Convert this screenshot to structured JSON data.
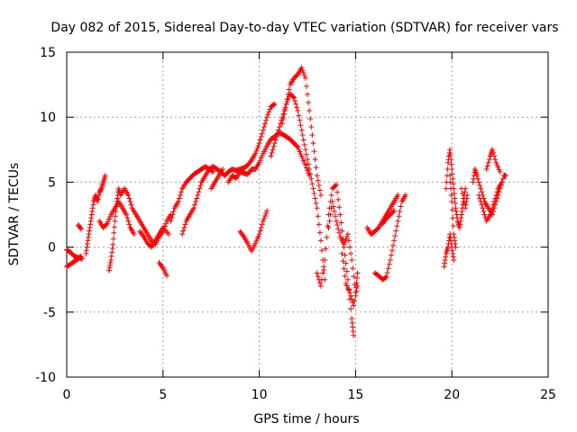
{
  "chart_data": {
    "type": "scatter",
    "title": "Day 082 of 2015, Sidereal Day-to-day VTEC variation (SDTVAR) for receiver vars",
    "xlabel": "GPS time / hours",
    "ylabel": "SDTVAR / TECUs",
    "xlim": [
      0,
      25
    ],
    "ylim": [
      -10,
      15
    ],
    "xticks": [
      0,
      5,
      10,
      15,
      20,
      25
    ],
    "yticks": [
      -10,
      -5,
      0,
      5,
      10,
      15
    ],
    "xtick_labels": [
      "0",
      "5",
      "10",
      "15",
      "20",
      "25"
    ],
    "ytick_labels": [
      "-10",
      "-5",
      "0",
      "5",
      "10",
      "15"
    ],
    "grid": true,
    "marker": "+",
    "series_color": "#ff0000",
    "series": [
      {
        "name": "SDTVAR",
        "segments": [
          [
            [
              0.0,
              -1.5
            ],
            [
              0.2,
              -1.3
            ],
            [
              0.4,
              -1.1
            ],
            [
              0.6,
              -0.9
            ],
            [
              0.75,
              -0.7
            ]
          ],
          [
            [
              0.0,
              -0.2
            ],
            [
              0.2,
              -0.4
            ],
            [
              0.4,
              -0.7
            ],
            [
              0.6,
              -0.8
            ],
            [
              0.8,
              -0.9
            ]
          ],
          [
            [
              0.6,
              1.7
            ],
            [
              0.75,
              1.4
            ]
          ],
          [
            [
              1.0,
              -0.5
            ],
            [
              1.1,
              0.5
            ],
            [
              1.2,
              1.5
            ],
            [
              1.3,
              2.5
            ],
            [
              1.4,
              3.5
            ],
            [
              1.5,
              4.0
            ],
            [
              1.6,
              3.5
            ],
            [
              1.7,
              4.2
            ],
            [
              1.8,
              4.5
            ],
            [
              1.9,
              5.0
            ],
            [
              2.0,
              5.5
            ]
          ],
          [
            [
              1.7,
              2.0
            ],
            [
              1.9,
              1.5
            ],
            [
              2.1,
              1.8
            ],
            [
              2.3,
              2.5
            ],
            [
              2.5,
              3.0
            ],
            [
              2.7,
              3.5
            ],
            [
              2.9,
              3.0
            ],
            [
              3.1,
              2.5
            ],
            [
              3.3,
              1.5
            ],
            [
              3.5,
              1.0
            ]
          ],
          [
            [
              2.2,
              -1.8
            ],
            [
              2.3,
              -1.0
            ],
            [
              2.4,
              0.2
            ],
            [
              2.5,
              2.0
            ],
            [
              2.6,
              3.5
            ],
            [
              2.7,
              4.5
            ],
            [
              2.8,
              4.0
            ],
            [
              3.0,
              4.5
            ],
            [
              3.2,
              4.0
            ],
            [
              3.4,
              3.0
            ],
            [
              3.6,
              2.5
            ],
            [
              3.8,
              2.0
            ],
            [
              4.0,
              1.5
            ],
            [
              4.2,
              1.0
            ],
            [
              4.4,
              0.5
            ],
            [
              4.6,
              0.2
            ],
            [
              4.8,
              0.8
            ],
            [
              5.0,
              1.2
            ],
            [
              5.2,
              2.0
            ],
            [
              5.4,
              2.5
            ]
          ],
          [
            [
              3.8,
              1.2
            ],
            [
              4.0,
              0.8
            ],
            [
              4.2,
              0.3
            ],
            [
              4.4,
              0.0
            ],
            [
              4.6,
              0.5
            ],
            [
              4.8,
              1.0
            ],
            [
              5.0,
              1.5
            ],
            [
              5.3,
              1.0
            ]
          ],
          [
            [
              4.8,
              -1.2
            ],
            [
              5.0,
              -1.6
            ],
            [
              5.2,
              -2.2
            ]
          ],
          [
            [
              5.4,
              2.0
            ],
            [
              5.6,
              3.0
            ],
            [
              5.8,
              3.5
            ],
            [
              6.0,
              4.5
            ],
            [
              6.2,
              5.0
            ],
            [
              6.4,
              5.3
            ],
            [
              6.6,
              5.6
            ],
            [
              6.8,
              5.8
            ],
            [
              7.0,
              6.0
            ],
            [
              7.2,
              6.2
            ],
            [
              7.4,
              6.0
            ],
            [
              7.6,
              6.2
            ],
            [
              7.8,
              6.0
            ],
            [
              8.0,
              5.8
            ],
            [
              8.2,
              5.5
            ]
          ],
          [
            [
              6.0,
              1.0
            ],
            [
              6.2,
              2.0
            ],
            [
              6.4,
              2.5
            ],
            [
              6.6,
              3.0
            ],
            [
              6.8,
              4.0
            ],
            [
              7.0,
              5.0
            ],
            [
              7.2,
              5.5
            ],
            [
              7.4,
              6.0
            ],
            [
              7.6,
              5.8
            ]
          ],
          [
            [
              7.5,
              4.5
            ],
            [
              7.7,
              5.0
            ],
            [
              7.9,
              5.5
            ],
            [
              8.1,
              6.0
            ]
          ],
          [
            [
              8.2,
              5.5
            ],
            [
              8.4,
              5.8
            ],
            [
              8.6,
              6.0
            ],
            [
              8.8,
              5.9
            ],
            [
              9.0,
              6.0
            ],
            [
              9.2,
              6.1
            ],
            [
              9.4,
              6.3
            ],
            [
              9.6,
              6.7
            ],
            [
              9.8,
              7.2
            ],
            [
              10.0,
              8.0
            ],
            [
              10.2,
              9.0
            ],
            [
              10.4,
              10.0
            ],
            [
              10.6,
              10.8
            ],
            [
              10.8,
              11.0
            ]
          ],
          [
            [
              8.4,
              5.0
            ],
            [
              8.6,
              5.5
            ],
            [
              8.8,
              5.3
            ],
            [
              9.0,
              5.8
            ],
            [
              9.2,
              5.7
            ],
            [
              9.4,
              5.6
            ],
            [
              9.6,
              6.0
            ],
            [
              9.8,
              6.0
            ],
            [
              10.0,
              6.5
            ],
            [
              10.2,
              7.2
            ],
            [
              10.4,
              7.8
            ],
            [
              10.6,
              8.3
            ],
            [
              10.8,
              8.5
            ],
            [
              11.0,
              8.8
            ],
            [
              11.2,
              8.7
            ],
            [
              11.4,
              8.5
            ],
            [
              11.6,
              8.3
            ],
            [
              11.8,
              8.0
            ],
            [
              12.0,
              7.7
            ],
            [
              12.2,
              7.0
            ],
            [
              12.4,
              6.3
            ],
            [
              12.6,
              5.5
            ]
          ],
          [
            [
              9.0,
              1.2
            ],
            [
              9.2,
              0.8
            ],
            [
              9.4,
              0.3
            ],
            [
              9.6,
              -0.3
            ],
            [
              9.8,
              0.3
            ],
            [
              10.0,
              1.0
            ],
            [
              10.2,
              2.0
            ],
            [
              10.4,
              2.8
            ]
          ],
          [
            [
              10.6,
              7.0
            ],
            [
              10.8,
              8.0
            ],
            [
              11.0,
              9.0
            ],
            [
              11.2,
              10.0
            ],
            [
              11.4,
              11.0
            ],
            [
              11.6,
              11.8
            ],
            [
              11.8,
              11.5
            ],
            [
              12.0,
              10.5
            ],
            [
              12.2,
              9.0
            ],
            [
              12.4,
              7.5
            ],
            [
              12.6,
              6.0
            ],
            [
              12.8,
              4.5
            ],
            [
              13.0,
              3.0
            ],
            [
              13.2,
              0.5
            ],
            [
              13.4,
              -2.5
            ]
          ],
          [
            [
              11.2,
              9.5
            ],
            [
              11.4,
              11.0
            ],
            [
              11.6,
              12.5
            ],
            [
              11.8,
              13.0
            ],
            [
              12.0,
              13.3
            ],
            [
              12.2,
              13.8
            ],
            [
              12.4,
              13.0
            ],
            [
              12.6,
              10.5
            ],
            [
              12.8,
              8.0
            ],
            [
              13.0,
              5.5
            ],
            [
              13.2,
              4.0
            ]
          ],
          [
            [
              13.0,
              -2.0
            ],
            [
              13.2,
              -3.0
            ],
            [
              13.4,
              -1.0
            ],
            [
              13.6,
              2.5
            ],
            [
              13.8,
              4.5
            ],
            [
              14.0,
              4.8
            ],
            [
              14.2,
              2.5
            ],
            [
              14.4,
              0.0
            ],
            [
              14.6,
              -2.5
            ],
            [
              14.8,
              -5.5
            ],
            [
              14.9,
              -6.8
            ]
          ],
          [
            [
              13.6,
              1.5
            ],
            [
              13.8,
              3.5
            ],
            [
              14.0,
              2.0
            ],
            [
              14.2,
              0.8
            ],
            [
              14.4,
              0.2
            ],
            [
              14.6,
              1.0
            ],
            [
              14.8,
              -1.0
            ],
            [
              15.0,
              -3.5
            ],
            [
              15.1,
              -2.0
            ]
          ],
          [
            [
              14.3,
              -0.5
            ],
            [
              14.5,
              -2.8
            ],
            [
              14.7,
              -3.5
            ],
            [
              14.9,
              -4.5
            ],
            [
              15.1,
              -3.0
            ]
          ],
          [
            [
              15.6,
              1.5
            ],
            [
              15.8,
              1.0
            ],
            [
              16.0,
              1.2
            ],
            [
              16.2,
              1.5
            ],
            [
              16.4,
              2.0
            ],
            [
              16.6,
              2.5
            ],
            [
              16.8,
              3.0
            ],
            [
              17.0,
              3.5
            ],
            [
              17.2,
              4.0
            ]
          ],
          [
            [
              16.0,
              -2.0
            ],
            [
              16.2,
              -2.2
            ],
            [
              16.4,
              -2.5
            ],
            [
              16.6,
              -2.3
            ],
            [
              16.8,
              -1.0
            ],
            [
              17.0,
              0.5
            ],
            [
              17.2,
              2.0
            ],
            [
              17.4,
              3.5
            ],
            [
              17.6,
              4.0
            ]
          ],
          [
            [
              16.4,
              1.8
            ],
            [
              16.6,
              2.2
            ],
            [
              16.8,
              2.5
            ],
            [
              17.0,
              2.8
            ]
          ],
          [
            [
              19.6,
              -1.5
            ],
            [
              19.7,
              -0.5
            ],
            [
              19.8,
              0.0
            ],
            [
              19.9,
              1.0
            ],
            [
              20.0,
              0.0
            ],
            [
              20.1,
              -1.0
            ]
          ],
          [
            [
              19.7,
              4.5
            ],
            [
              19.8,
              6.5
            ],
            [
              19.9,
              7.5
            ],
            [
              20.0,
              6.0
            ],
            [
              20.1,
              4.5
            ],
            [
              20.2,
              3.0
            ],
            [
              20.3,
              2.0
            ],
            [
              20.4,
              1.5
            ],
            [
              20.5,
              2.5
            ],
            [
              20.6,
              3.5
            ],
            [
              20.7,
              4.5
            ]
          ],
          [
            [
              19.9,
              5.5
            ],
            [
              20.0,
              3.5
            ],
            [
              20.1,
              1.0
            ],
            [
              20.2,
              0.0
            ]
          ],
          [
            [
              20.5,
              4.5
            ],
            [
              20.7,
              3.0
            ],
            [
              20.8,
              4.0
            ]
          ],
          [
            [
              21.1,
              5.0
            ],
            [
              21.2,
              6.0
            ],
            [
              21.3,
              5.5
            ],
            [
              21.5,
              4.5
            ],
            [
              21.7,
              3.5
            ],
            [
              21.9,
              3.0
            ],
            [
              22.1,
              2.5
            ],
            [
              22.3,
              3.5
            ],
            [
              22.5,
              4.5
            ],
            [
              22.7,
              5.5
            ],
            [
              22.8,
              5.5
            ]
          ],
          [
            [
              21.4,
              4.0
            ],
            [
              21.6,
              3.0
            ],
            [
              21.8,
              2.0
            ],
            [
              22.0,
              2.5
            ],
            [
              22.2,
              3.5
            ],
            [
              22.4,
              4.5
            ],
            [
              22.6,
              5.0
            ]
          ],
          [
            [
              21.8,
              6.0
            ],
            [
              22.0,
              7.0
            ],
            [
              22.1,
              7.5
            ],
            [
              22.3,
              6.5
            ],
            [
              22.5,
              5.8
            ]
          ]
        ]
      }
    ]
  }
}
